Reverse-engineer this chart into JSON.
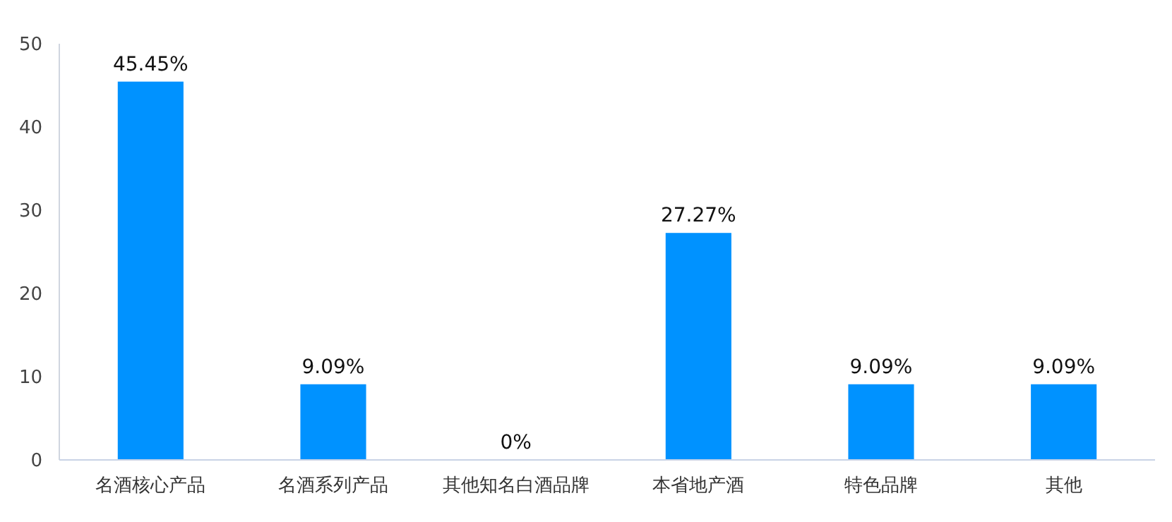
{
  "chart_data": {
    "type": "bar",
    "categories": [
      "名酒核心产品",
      "名酒系列产品",
      "其他知名白酒品牌",
      "本省地产酒",
      "特色品牌",
      "其他"
    ],
    "values": [
      45.45,
      9.09,
      0,
      27.27,
      9.09,
      9.09
    ],
    "value_labels": [
      "45.45%",
      "9.09%",
      "0%",
      "27.27%",
      "9.09%",
      "9.09%"
    ],
    "color": "#0092ff",
    "ylim": [
      0,
      50
    ],
    "yticks": [
      0,
      10,
      20,
      30,
      40,
      50
    ],
    "grid": false
  }
}
